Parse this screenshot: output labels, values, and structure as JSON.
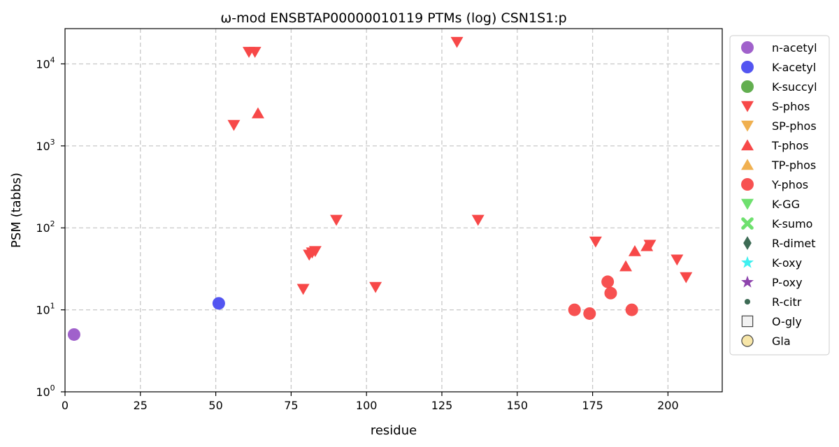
{
  "chart_data": {
    "type": "scatter",
    "title": "ω-mod ENSBTAP00000010119 PTMs (log) CSN1S1:p",
    "xlabel": "residue",
    "ylabel": "PSM (tabbs)",
    "xlim": [
      0,
      218
    ],
    "ylim_log10": [
      0,
      4.43
    ],
    "y_scale": "log",
    "grid": true,
    "legend_position": "right-outside",
    "x_ticks": [
      0,
      25,
      50,
      75,
      100,
      125,
      150,
      175,
      200
    ],
    "y_ticks": [
      {
        "value": 1,
        "base": "10",
        "exp": "0"
      },
      {
        "value": 10,
        "base": "10",
        "exp": "1"
      },
      {
        "value": 100,
        "base": "10",
        "exp": "2"
      },
      {
        "value": 1000,
        "base": "10",
        "exp": "3"
      },
      {
        "value": 10000,
        "base": "10",
        "exp": "4"
      }
    ],
    "series": [
      {
        "name": "n-acetyl",
        "marker": "circle",
        "color": "#9b59c8",
        "points": [
          [
            3,
            5
          ]
        ]
      },
      {
        "name": "K-acetyl",
        "marker": "circle",
        "color": "#4a4cf0",
        "points": [
          [
            51,
            12
          ]
        ]
      },
      {
        "name": "K-succyl",
        "marker": "circle",
        "color": "#5aaa46",
        "points": []
      },
      {
        "name": "S-phos",
        "marker": "triangle-down",
        "color": "#f74848",
        "points": [
          [
            61,
            14000
          ],
          [
            63,
            14000
          ],
          [
            130,
            18500
          ],
          [
            56,
            1800
          ],
          [
            90,
            125
          ],
          [
            137,
            125
          ],
          [
            81,
            47
          ],
          [
            82,
            50
          ],
          [
            83,
            52
          ],
          [
            79,
            18
          ],
          [
            103,
            19
          ],
          [
            176,
            68
          ],
          [
            194,
            62
          ],
          [
            203,
            41
          ],
          [
            206,
            25
          ]
        ]
      },
      {
        "name": "SP-phos",
        "marker": "triangle-down",
        "color": "#f0b050",
        "points": []
      },
      {
        "name": "T-phos",
        "marker": "triangle-up",
        "color": "#f74848",
        "points": [
          [
            64,
            2500
          ],
          [
            189,
            52
          ],
          [
            193,
            60
          ],
          [
            186,
            34
          ]
        ]
      },
      {
        "name": "TP-phos",
        "marker": "triangle-up",
        "color": "#f0b050",
        "points": []
      },
      {
        "name": "Y-phos",
        "marker": "circle",
        "color": "#f74848",
        "points": [
          [
            169,
            10
          ],
          [
            174,
            9
          ],
          [
            180,
            22
          ],
          [
            181,
            16
          ],
          [
            188,
            10
          ]
        ]
      },
      {
        "name": "K-GG",
        "marker": "triangle-down",
        "color": "#6ee06e",
        "points": []
      },
      {
        "name": "K-sumo",
        "marker": "x",
        "color": "#6ee06e",
        "points": []
      },
      {
        "name": "R-dimet",
        "marker": "diamond",
        "color": "#3d6b55",
        "points": []
      },
      {
        "name": "K-oxy",
        "marker": "star",
        "color": "#3ff0f0",
        "points": []
      },
      {
        "name": "P-oxy",
        "marker": "star",
        "color": "#8e44ad",
        "points": []
      },
      {
        "name": "R-citr",
        "marker": "small-circle",
        "color": "#3d6b55",
        "points": []
      },
      {
        "name": "O-gly",
        "marker": "square-open",
        "color": "#f2f2f2",
        "points": []
      },
      {
        "name": "Gla",
        "marker": "circle-open",
        "color": "#f7e6a8",
        "points": []
      }
    ]
  }
}
